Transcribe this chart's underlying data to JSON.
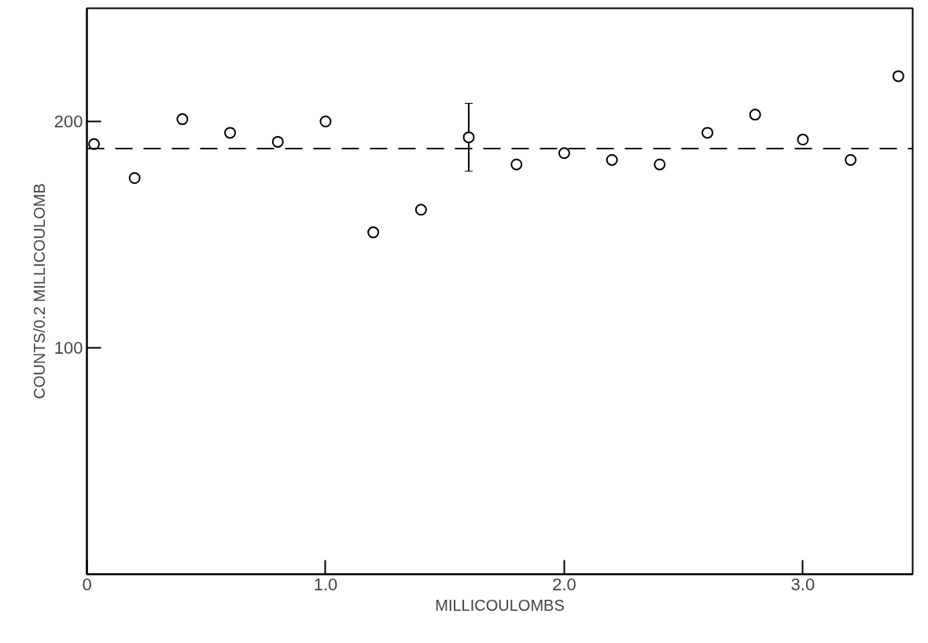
{
  "chart_data": {
    "type": "scatter",
    "xlabel": "MILLICOULOMBS",
    "ylabel": "COUNTS/0.2 MILLICOULOMB",
    "x": [
      0.03,
      0.2,
      0.4,
      0.6,
      0.8,
      1.0,
      1.2,
      1.4,
      1.6,
      1.8,
      2.0,
      2.2,
      2.4,
      2.6,
      2.8,
      3.0,
      3.2,
      3.4
    ],
    "values": [
      190,
      175,
      201,
      195,
      191,
      200,
      151,
      161,
      193,
      181,
      186,
      183,
      181,
      195,
      203,
      192,
      183,
      220
    ],
    "errors": [
      null,
      null,
      null,
      null,
      null,
      null,
      null,
      null,
      15,
      null,
      null,
      null,
      null,
      null,
      null,
      null,
      null,
      null
    ],
    "color": "#000000",
    "marker": "circle",
    "xlim": [
      0,
      3.46
    ],
    "ylim": [
      0,
      250
    ],
    "xticks": [
      0,
      {
        "value": 1,
        "label": "1.0"
      },
      {
        "value": 2,
        "label": "2.0"
      },
      {
        "value": 3,
        "label": "3.0"
      }
    ],
    "yticks": [
      100,
      200
    ],
    "ref_lines": [
      {
        "axis": "y",
        "value": 188,
        "label": null,
        "line_style": "dashed",
        "color": "#000000"
      }
    ],
    "grid": false
  }
}
